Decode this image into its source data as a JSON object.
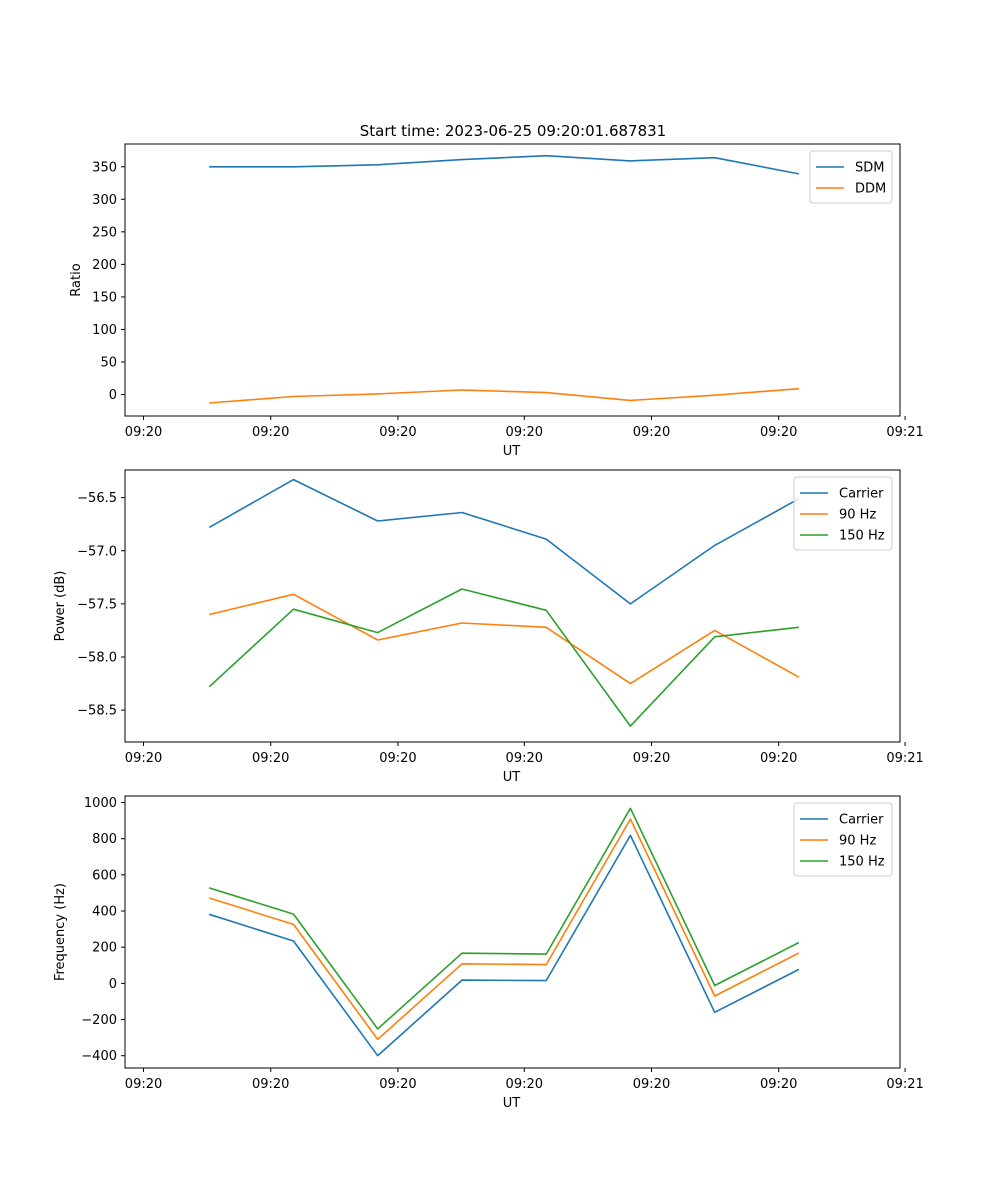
{
  "figure": {
    "title": "Start time: 2023-06-25 09:20:01.687831"
  },
  "colors": {
    "blue": "#1f77b4",
    "orange": "#ff7f0e",
    "green": "#2ca02c"
  },
  "chart_data": [
    {
      "type": "line",
      "title": "Start time: 2023-06-25 09:20:01.687831",
      "xlabel": "UT",
      "ylabel": "Ratio",
      "x_tick_labels": [
        "09:20",
        "09:20",
        "09:20",
        "09:20",
        "09:20",
        "09:20",
        "09:21"
      ],
      "x_points": [
        1,
        2,
        3,
        4,
        5,
        6,
        7,
        8
      ],
      "xlim": [
        0,
        9.2
      ],
      "ylim": [
        -33,
        385
      ],
      "y_ticks": [
        0,
        50,
        100,
        150,
        200,
        250,
        300,
        350
      ],
      "legend_position": "top-right",
      "series": [
        {
          "name": "SDM",
          "color": "#1f77b4",
          "values": [
            350,
            350,
            353,
            361,
            367,
            359,
            364,
            339
          ]
        },
        {
          "name": "DDM",
          "color": "#ff7f0e",
          "values": [
            -13,
            -3,
            1,
            7,
            3,
            -9,
            -1,
            9
          ]
        }
      ]
    },
    {
      "type": "line",
      "xlabel": "UT",
      "ylabel": "Power (dB)",
      "x_tick_labels": [
        "09:20",
        "09:20",
        "09:20",
        "09:20",
        "09:20",
        "09:20",
        "09:21"
      ],
      "x_points": [
        1,
        2,
        3,
        4,
        5,
        6,
        7,
        8
      ],
      "xlim": [
        0,
        9.2
      ],
      "ylim": [
        -58.8,
        -56.24
      ],
      "y_ticks": [
        -58.5,
        -58.0,
        -57.5,
        -57.0,
        -56.5
      ],
      "y_tick_labels": [
        "−58.5",
        "−58.0",
        "−57.5",
        "−57.0",
        "−56.5"
      ],
      "legend_position": "top-right",
      "series": [
        {
          "name": "Carrier",
          "color": "#1f77b4",
          "values": [
            -56.78,
            -56.33,
            -56.72,
            -56.64,
            -56.89,
            -57.5,
            -56.95,
            -56.51
          ]
        },
        {
          "name": "90 Hz",
          "color": "#ff7f0e",
          "values": [
            -57.6,
            -57.41,
            -57.84,
            -57.68,
            -57.72,
            -58.25,
            -57.75,
            -58.19
          ]
        },
        {
          "name": "150 Hz",
          "color": "#2ca02c",
          "values": [
            -58.28,
            -57.55,
            -57.77,
            -57.36,
            -57.56,
            -58.65,
            -57.81,
            -57.72
          ]
        }
      ]
    },
    {
      "type": "line",
      "xlabel": "UT",
      "ylabel": "Frequency (Hz)",
      "x_tick_labels": [
        "09:20",
        "09:20",
        "09:20",
        "09:20",
        "09:20",
        "09:20",
        "09:21"
      ],
      "x_points": [
        1,
        2,
        3,
        4,
        5,
        6,
        7,
        8
      ],
      "xlim": [
        0,
        9.2
      ],
      "ylim": [
        -468,
        1036
      ],
      "y_ticks": [
        -400,
        -200,
        0,
        200,
        400,
        600,
        800,
        1000
      ],
      "y_tick_labels": [
        "−400",
        "−200",
        "0",
        "200",
        "400",
        "600",
        "800",
        "1000"
      ],
      "legend_position": "top-right",
      "series": [
        {
          "name": "Carrier",
          "color": "#1f77b4",
          "values": [
            382,
            234,
            -400,
            18,
            15,
            818,
            -160,
            77
          ]
        },
        {
          "name": "90 Hz",
          "color": "#ff7f0e",
          "values": [
            472,
            326,
            -310,
            108,
            104,
            908,
            -70,
            168
          ]
        },
        {
          "name": "150 Hz",
          "color": "#2ca02c",
          "values": [
            528,
            383,
            -252,
            167,
            162,
            968,
            -12,
            226
          ]
        }
      ]
    }
  ]
}
